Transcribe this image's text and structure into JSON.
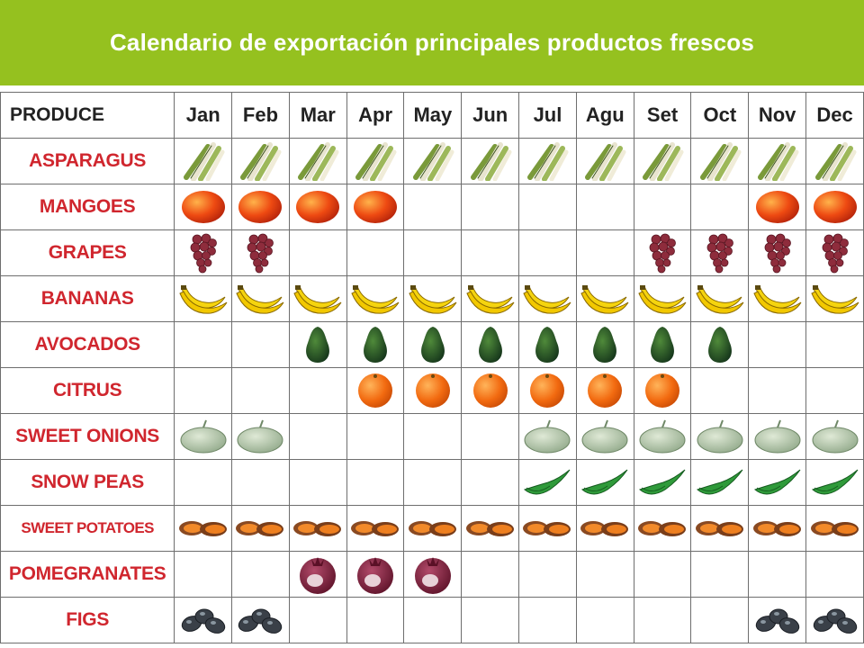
{
  "title": "Calendario de exportación principales productos frescos",
  "colors": {
    "banner": "#95c11f",
    "produce_text": "#d0262e",
    "grid": "#6e6e6e"
  },
  "table": {
    "produce_header": "PRODUCE",
    "months": [
      "Jan",
      "Feb",
      "Mar",
      "Apr",
      "May",
      "Jun",
      "Jul",
      "Agu",
      "Set",
      "Oct",
      "Nov",
      "Dec"
    ],
    "rows": [
      {
        "name": "ASPARAGUS",
        "icon": "asparagus-icon",
        "months": [
          1,
          1,
          1,
          1,
          1,
          1,
          1,
          1,
          1,
          1,
          1,
          1
        ]
      },
      {
        "name": "MANGOES",
        "icon": "mango-icon",
        "months": [
          1,
          1,
          1,
          1,
          0,
          0,
          0,
          0,
          0,
          0,
          1,
          1
        ]
      },
      {
        "name": "GRAPES",
        "icon": "grapes-icon",
        "months": [
          1,
          1,
          0,
          0,
          0,
          0,
          0,
          0,
          1,
          1,
          1,
          1
        ]
      },
      {
        "name": "BANANAS",
        "icon": "bananas-icon",
        "months": [
          1,
          1,
          1,
          1,
          1,
          1,
          1,
          1,
          1,
          1,
          1,
          1
        ]
      },
      {
        "name": "AVOCADOS",
        "icon": "avocado-icon",
        "months": [
          0,
          0,
          1,
          1,
          1,
          1,
          1,
          1,
          1,
          1,
          0,
          0
        ]
      },
      {
        "name": "CITRUS",
        "icon": "citrus-icon",
        "months": [
          0,
          0,
          0,
          1,
          1,
          1,
          1,
          1,
          1,
          0,
          0,
          0
        ]
      },
      {
        "name": "SWEET ONIONS",
        "icon": "sweet-onion-icon",
        "months": [
          1,
          1,
          0,
          0,
          0,
          0,
          1,
          1,
          1,
          1,
          1,
          1
        ]
      },
      {
        "name": "SNOW PEAS",
        "icon": "snow-peas-icon",
        "months": [
          0,
          0,
          0,
          0,
          0,
          0,
          1,
          1,
          1,
          1,
          1,
          1
        ]
      },
      {
        "name": "SWEET POTATOES",
        "icon": "sweet-potato-icon",
        "months": [
          1,
          1,
          1,
          1,
          1,
          1,
          1,
          1,
          1,
          1,
          1,
          1
        ]
      },
      {
        "name": "POMEGRANATES",
        "icon": "pomegranate-icon",
        "months": [
          0,
          0,
          1,
          1,
          1,
          0,
          0,
          0,
          0,
          0,
          0,
          0
        ]
      },
      {
        "name": "FIGS",
        "icon": "fig-icon",
        "months": [
          1,
          1,
          0,
          0,
          0,
          0,
          0,
          0,
          0,
          0,
          1,
          1
        ]
      }
    ]
  }
}
